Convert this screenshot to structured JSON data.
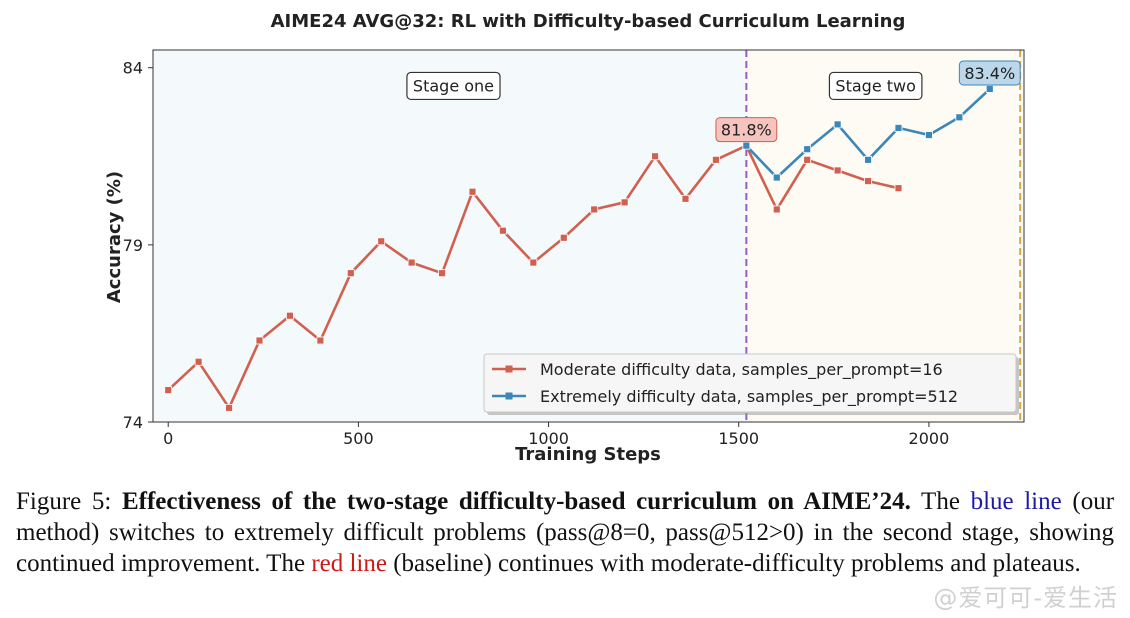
{
  "chart_data": {
    "type": "line",
    "title": "AIME24 AVG@32: RL with Difficulty-based Curriculum Learning",
    "xlabel": "Training Steps",
    "ylabel": "Accuracy (%)",
    "xlim": [
      -40,
      2250
    ],
    "ylim": [
      74,
      84.5
    ],
    "x_ticks": [
      0,
      500,
      1000,
      1500,
      2000
    ],
    "x_tick_labels": [
      "0",
      "500",
      "1000",
      "1500",
      "2000"
    ],
    "y_ticks": [
      74,
      79,
      84
    ],
    "y_tick_labels": [
      "74",
      "79",
      "84"
    ],
    "grid": false,
    "stage_boundary_x": 1520,
    "end_boundary_x": 2240,
    "stages": [
      {
        "label": "Stage one",
        "x_range": [
          -40,
          1520
        ],
        "center_x": 750,
        "label_y": 83.5
      },
      {
        "label": "Stage two",
        "x_range": [
          1520,
          2240
        ],
        "center_x": 1860,
        "label_y": 83.5
      }
    ],
    "series": [
      {
        "name": "Moderate difficulty data, samples_per_prompt=16",
        "color": "#d0604f",
        "x": [
          0,
          80,
          160,
          240,
          320,
          400,
          480,
          560,
          640,
          720,
          800,
          880,
          960,
          1040,
          1120,
          1200,
          1280,
          1360,
          1440,
          1520,
          1600,
          1680,
          1760,
          1840,
          1920
        ],
        "values": [
          74.9,
          75.7,
          74.4,
          76.3,
          77.0,
          76.3,
          78.2,
          79.1,
          78.5,
          78.2,
          80.5,
          79.4,
          78.5,
          79.2,
          80.0,
          80.2,
          81.5,
          80.3,
          81.4,
          81.8,
          80.0,
          81.4,
          81.1,
          80.8,
          80.6
        ]
      },
      {
        "name": "Extremely difficulty data, samples_per_prompt=512",
        "color": "#3b87b8",
        "x": [
          1520,
          1600,
          1680,
          1760,
          1840,
          1920,
          2000,
          2080,
          2160
        ],
        "values": [
          81.8,
          80.9,
          81.7,
          82.4,
          81.4,
          82.3,
          82.1,
          82.6,
          83.4
        ]
      }
    ],
    "annotations": [
      {
        "text": "81.8%",
        "x": 1520,
        "y": 81.8,
        "style": "red"
      },
      {
        "text": "83.4%",
        "x": 2160,
        "y": 83.4,
        "style": "blue"
      }
    ],
    "legend_position": "lower-right"
  },
  "caption": {
    "prefix": "Figure 5: ",
    "bold": "Effectiveness of the two-stage difficulty-based curriculum on AIME’24.",
    "part1": " The ",
    "blue_text": "blue line",
    "part2": " (our method) switches to extremely difficult problems (pass@8=0, pass@512>0) in the second stage, showing continued improvement. The ",
    "red_text": "red line",
    "part3": " (baseline) continues with moderate-difficulty problems and plateaus."
  },
  "watermark": "@爱可可-爱生活"
}
